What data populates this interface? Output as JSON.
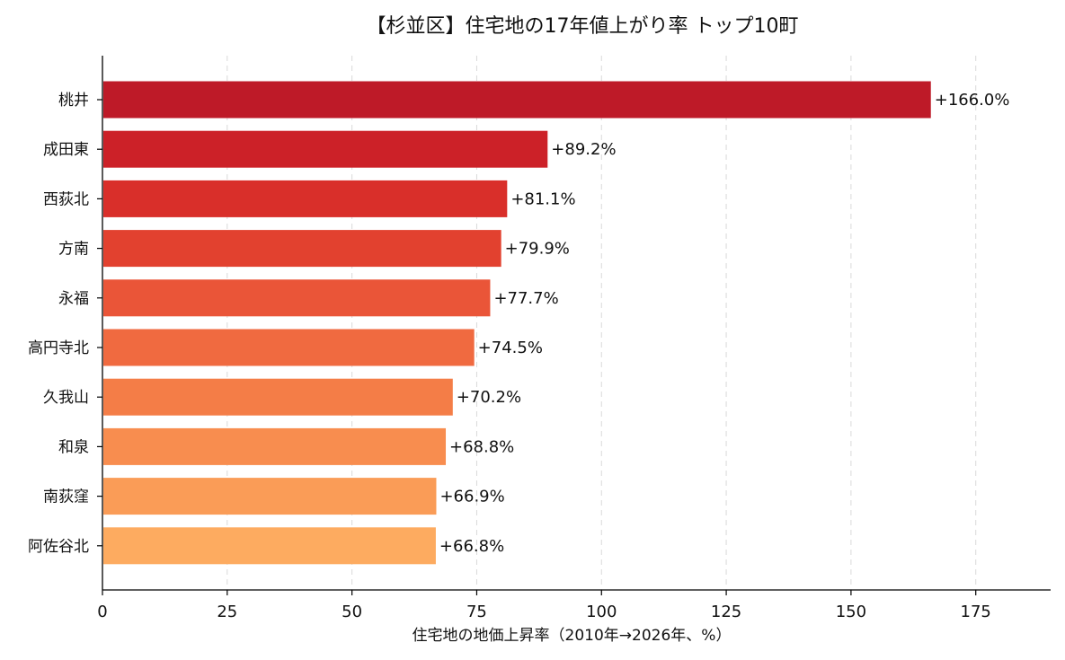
{
  "chart_data": {
    "type": "bar",
    "orientation": "horizontal",
    "title": "【杉並区】住宅地の17年値上がり率 トップ10町",
    "xlabel": "住宅地の地価上昇率（2010年→2026年、%）",
    "ylabel": "",
    "xlim": [
      0,
      190
    ],
    "xticks": [
      0,
      25,
      50,
      75,
      100,
      125,
      150,
      175
    ],
    "grid": "x-dashed",
    "categories": [
      "桃井",
      "成田東",
      "西荻北",
      "方南",
      "永福",
      "高円寺北",
      "久我山",
      "和泉",
      "南荻窪",
      "阿佐谷北"
    ],
    "values": [
      166.0,
      89.2,
      81.1,
      79.9,
      77.7,
      74.5,
      70.2,
      68.8,
      66.9,
      66.8
    ],
    "value_labels": [
      "+166.0%",
      "+89.2%",
      "+81.1%",
      "+79.9%",
      "+77.7%",
      "+74.5%",
      "+70.2%",
      "+68.8%",
      "+66.9%",
      "+66.8%"
    ],
    "colors": [
      "#be1a28",
      "#cc2128",
      "#d92f2a",
      "#e2412f",
      "#ea5538",
      "#f06a40",
      "#f47d47",
      "#f88d4f",
      "#fa9c57",
      "#fdab60"
    ]
  }
}
